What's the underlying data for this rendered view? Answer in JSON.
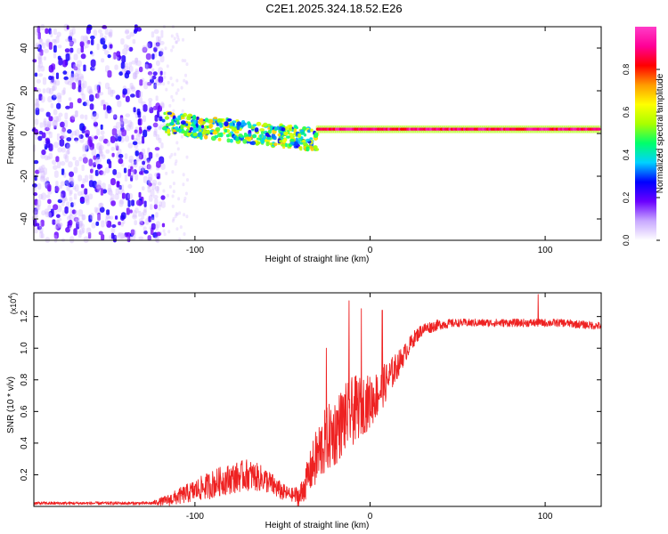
{
  "title": "C2E1.2025.324.18.52.E26",
  "chart_data": [
    {
      "type": "heatmap",
      "name": "spectrogram",
      "xlabel": "Height of straight line (km)",
      "ylabel": "Frequency (Hz)",
      "xlim": [
        -192,
        132
      ],
      "ylim": [
        -50,
        50
      ],
      "xticks": [
        -100,
        0,
        100
      ],
      "xtick_labels": [
        "-100",
        "0",
        "100"
      ],
      "yticks": [
        -40,
        -20,
        0,
        20,
        40
      ],
      "ytick_labels": [
        "-40",
        "-20",
        "0",
        "20",
        "40"
      ],
      "description_segments": [
        {
          "x_range": [
            -192,
            -118
          ],
          "content": "broadband noise, low amplitude (0.1-0.4)"
        },
        {
          "x_range": [
            -118,
            -30
          ],
          "content": "signal centered near +5 Hz drifting to -5 Hz, amplitude 0.3-0.7"
        },
        {
          "x_range": [
            -30,
            132
          ],
          "content": "narrow tone near +2 Hz, amplitude 0.8-1.0"
        }
      ],
      "colorbar": {
        "label": "Normalized spectral amplitude",
        "range": [
          0,
          1
        ],
        "ticks": [
          0.0,
          0.2,
          0.4,
          0.6,
          0.8
        ],
        "tick_labels": [
          "0.0",
          "0.2",
          "0.4",
          "0.6",
          "0.8"
        ],
        "colors": [
          "#ffffff",
          "#c8a8ff",
          "#6a00ff",
          "#0000ff",
          "#00d2ff",
          "#00ff6a",
          "#a8ff00",
          "#ffff00",
          "#ff9b00",
          "#ff0000",
          "#ff0096",
          "#ff3cc8"
        ]
      }
    },
    {
      "type": "line",
      "name": "snr",
      "xlabel": "Height of straight line (km)",
      "ylabel": "SNR (10 * v/v)",
      "multiplier_label": "(x10",
      "multiplier_exp": "4",
      "multiplier_close": ")",
      "xlim": [
        -192,
        132
      ],
      "ylim": [
        0,
        1.35
      ],
      "xticks": [
        -100,
        0,
        100
      ],
      "xtick_labels": [
        "-100",
        "0",
        "100"
      ],
      "yticks": [
        0.2,
        0.4,
        0.6,
        0.8,
        1.0,
        1.2
      ],
      "ytick_labels": [
        "0.2",
        "0.4",
        "0.6",
        "0.8",
        "1.0",
        "1.2"
      ],
      "color": "#ee2222",
      "trend": {
        "x": [
          -192,
          -125,
          -115,
          -100,
          -85,
          -70,
          -60,
          -50,
          -40,
          -35,
          -30,
          -25,
          -20,
          -15,
          -10,
          -5,
          0,
          5,
          10,
          15,
          20,
          25,
          30,
          40,
          50,
          60,
          70,
          80,
          90,
          100,
          110,
          120,
          132
        ],
        "y": [
          0.02,
          0.02,
          0.04,
          0.1,
          0.16,
          0.2,
          0.17,
          0.09,
          0.06,
          0.2,
          0.32,
          0.42,
          0.47,
          0.55,
          0.6,
          0.64,
          0.66,
          0.72,
          0.8,
          0.88,
          0.97,
          1.06,
          1.12,
          1.15,
          1.16,
          1.16,
          1.16,
          1.16,
          1.16,
          1.16,
          1.16,
          1.15,
          1.14
        ]
      },
      "noise_amplitude": {
        "x": [
          -192,
          -125,
          -110,
          -90,
          -70,
          -55,
          -45,
          -35,
          -30,
          -20,
          -10,
          0,
          10,
          20,
          30,
          50,
          132
        ],
        "y": [
          0.01,
          0.01,
          0.05,
          0.09,
          0.1,
          0.07,
          0.04,
          0.12,
          0.2,
          0.22,
          0.22,
          0.17,
          0.12,
          0.06,
          0.04,
          0.025,
          0.025
        ]
      },
      "spikes": [
        {
          "x": -25,
          "y": 1.0
        },
        {
          "x": -12,
          "y": 1.3
        },
        {
          "x": -5,
          "y": 1.25
        },
        {
          "x": 7,
          "y": 1.24
        },
        {
          "x": 96,
          "y": 1.34
        }
      ]
    }
  ]
}
